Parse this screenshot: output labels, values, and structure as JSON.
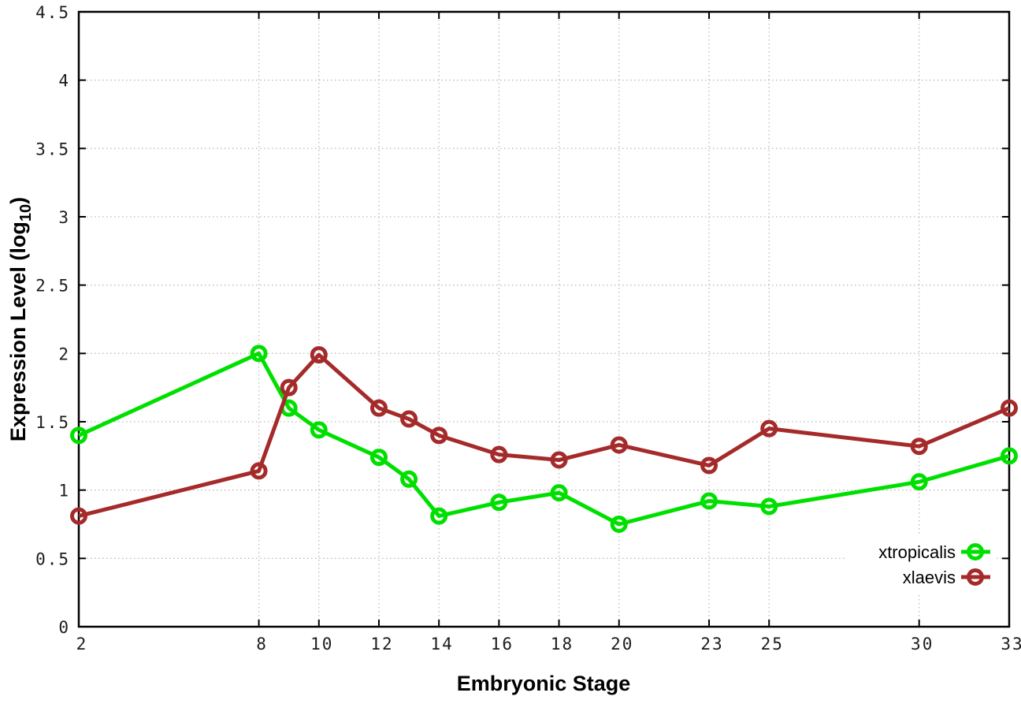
{
  "chart_data": {
    "type": "line",
    "title": "",
    "xlabel": "Embryonic Stage",
    "ylabel": "Expression Level (log10)",
    "ylabel_parts": {
      "main": "Expression Level (log",
      "sub": "10",
      "close": ")"
    },
    "xlim": [
      2,
      33
    ],
    "ylim": [
      0,
      4.5
    ],
    "grid": true,
    "legend_position": "bottom-right",
    "x_tick_values": [
      2,
      8,
      10,
      12,
      14,
      16,
      18,
      20,
      23,
      25,
      30,
      33
    ],
    "x_tick_labels": [
      "2",
      "8",
      "10",
      "12",
      "14",
      "16",
      "18",
      "20",
      "23",
      "25",
      "30",
      "33"
    ],
    "y_tick_values": [
      0,
      0.5,
      1,
      1.5,
      2,
      2.5,
      3,
      3.5,
      4,
      4.5
    ],
    "y_tick_labels": [
      "0",
      "0.5",
      "1",
      "1.5",
      "2",
      "2.5",
      "3",
      "3.5",
      "4",
      "4.5"
    ],
    "x": [
      2,
      8,
      9,
      10,
      12,
      13,
      14,
      16,
      18,
      20,
      23,
      25,
      30,
      33
    ],
    "series": [
      {
        "name": "xtropicalis",
        "color": "#00e000",
        "values": [
          1.4,
          2.0,
          1.6,
          1.44,
          1.24,
          1.08,
          0.81,
          0.91,
          0.98,
          0.75,
          0.92,
          0.88,
          1.06,
          1.25
        ]
      },
      {
        "name": "xlaevis",
        "color": "#a52a2a",
        "values": [
          0.81,
          1.14,
          1.75,
          1.99,
          1.6,
          1.52,
          1.4,
          1.26,
          1.22,
          1.33,
          1.18,
          1.45,
          1.32,
          1.6
        ]
      }
    ],
    "colors": {
      "grid": "#bbbbbb",
      "axis": "#000000",
      "tick_text": "#1c1c1c"
    }
  }
}
